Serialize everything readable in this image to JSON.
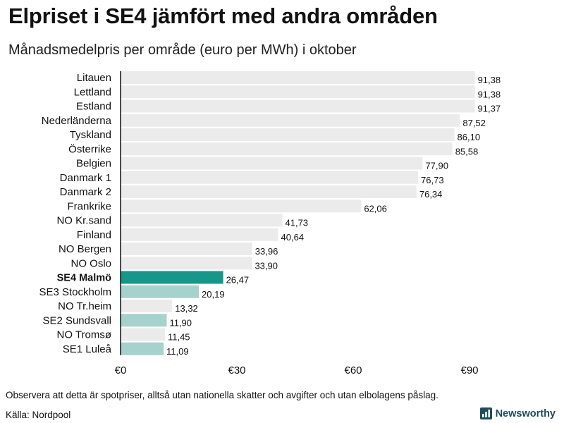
{
  "header": {
    "title": "Elpriset i SE4 jämfört med andra områden",
    "subtitle": "Månadsmedelpris per område (euro per MWh) i oktober"
  },
  "footer": {
    "note": "Observera att detta är spotpriser, alltså utan nationella skatter och avgifter och utan elbolagens påslag.",
    "source": "Källa: Nordpool",
    "brand": "Newsworthy"
  },
  "colors": {
    "highlight": "#17968a",
    "swedish": "#a6d1cd",
    "other": "#ebebeb",
    "axis": "#111111",
    "brand": "#1e4d56"
  },
  "icons": {
    "brand_logo": "bar-chart-icon"
  },
  "chart_data": {
    "type": "bar",
    "orientation": "horizontal",
    "title": "Elpriset i SE4 jämfört med andra områden",
    "subtitle": "Månadsmedelpris per område (euro per MWh) i oktober",
    "xlabel": "",
    "ylabel": "",
    "xlim": [
      0,
      100
    ],
    "ticks": [
      0,
      30,
      60,
      90
    ],
    "tick_labels": [
      "€0",
      "€30",
      "€60",
      "€90"
    ],
    "categories": [
      "Litauen",
      "Lettland",
      "Estland",
      "Nederländerna",
      "Tyskland",
      "Österrike",
      "Belgien",
      "Danmark 1",
      "Danmark 2",
      "Frankrike",
      "NO Kr.sand",
      "Finland",
      "NO Bergen",
      "NO Oslo",
      "SE4 Malmö",
      "SE3 Stockholm",
      "NO Tr.heim",
      "SE2 Sundsvall",
      "NO Tromsø",
      "SE1 Luleå"
    ],
    "values": [
      91.38,
      91.38,
      91.37,
      87.52,
      86.1,
      85.58,
      77.9,
      76.73,
      76.34,
      62.06,
      41.73,
      40.64,
      33.96,
      33.9,
      26.47,
      20.19,
      13.32,
      11.9,
      11.45,
      11.09
    ],
    "value_labels": [
      "91,38",
      "91,38",
      "91,37",
      "87,52",
      "86,10",
      "85,58",
      "77,90",
      "76,73",
      "76,34",
      "62,06",
      "41,73",
      "40,64",
      "33,96",
      "33,90",
      "26,47",
      "20,19",
      "13,32",
      "11,90",
      "11,45",
      "11,09"
    ],
    "groups": [
      "other",
      "other",
      "other",
      "other",
      "other",
      "other",
      "other",
      "other",
      "other",
      "other",
      "other",
      "other",
      "other",
      "other",
      "highlight",
      "swedish",
      "other",
      "swedish",
      "other",
      "swedish"
    ],
    "grid": false,
    "legend": "none"
  }
}
